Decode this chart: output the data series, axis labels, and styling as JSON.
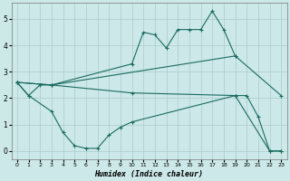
{
  "xlabel": "Humidex (Indice chaleur)",
  "bg_color": "#cce8e8",
  "grid_color": "#aacccc",
  "line_color": "#1a6b60",
  "xlim": [
    -0.5,
    23.5
  ],
  "ylim": [
    -0.3,
    5.6
  ],
  "xticks": [
    0,
    1,
    2,
    3,
    4,
    5,
    6,
    7,
    8,
    9,
    10,
    11,
    12,
    13,
    14,
    15,
    16,
    17,
    18,
    19,
    20,
    21,
    22,
    23
  ],
  "yticks": [
    0,
    1,
    2,
    3,
    4,
    5
  ],
  "series": {
    "upper_jagged": [
      [
        0,
        2.6
      ],
      [
        1,
        2.1
      ],
      [
        2,
        2.5
      ],
      [
        3,
        2.5
      ],
      [
        10,
        3.3
      ],
      [
        11,
        4.5
      ],
      [
        12,
        4.4
      ],
      [
        13,
        3.9
      ],
      [
        14,
        4.6
      ],
      [
        15,
        4.6
      ],
      [
        16,
        4.6
      ],
      [
        17,
        5.3
      ],
      [
        18,
        4.6
      ],
      [
        19,
        3.6
      ]
    ],
    "lower_bowl": [
      [
        0,
        2.6
      ],
      [
        1,
        2.1
      ],
      [
        3,
        1.5
      ],
      [
        4,
        0.7
      ],
      [
        5,
        0.2
      ],
      [
        6,
        0.1
      ],
      [
        7,
        0.1
      ],
      [
        8,
        0.6
      ],
      [
        9,
        0.9
      ],
      [
        10,
        1.1
      ],
      [
        19,
        2.1
      ],
      [
        20,
        2.1
      ],
      [
        21,
        1.3
      ],
      [
        22,
        0.0
      ],
      [
        23,
        0.0
      ]
    ],
    "upper_straight": [
      [
        0,
        2.6
      ],
      [
        3,
        2.5
      ],
      [
        19,
        3.6
      ],
      [
        23,
        2.1
      ]
    ],
    "lower_straight": [
      [
        0,
        2.6
      ],
      [
        3,
        2.5
      ],
      [
        10,
        2.2
      ],
      [
        19,
        2.1
      ],
      [
        22,
        0.0
      ],
      [
        23,
        0.0
      ]
    ]
  }
}
